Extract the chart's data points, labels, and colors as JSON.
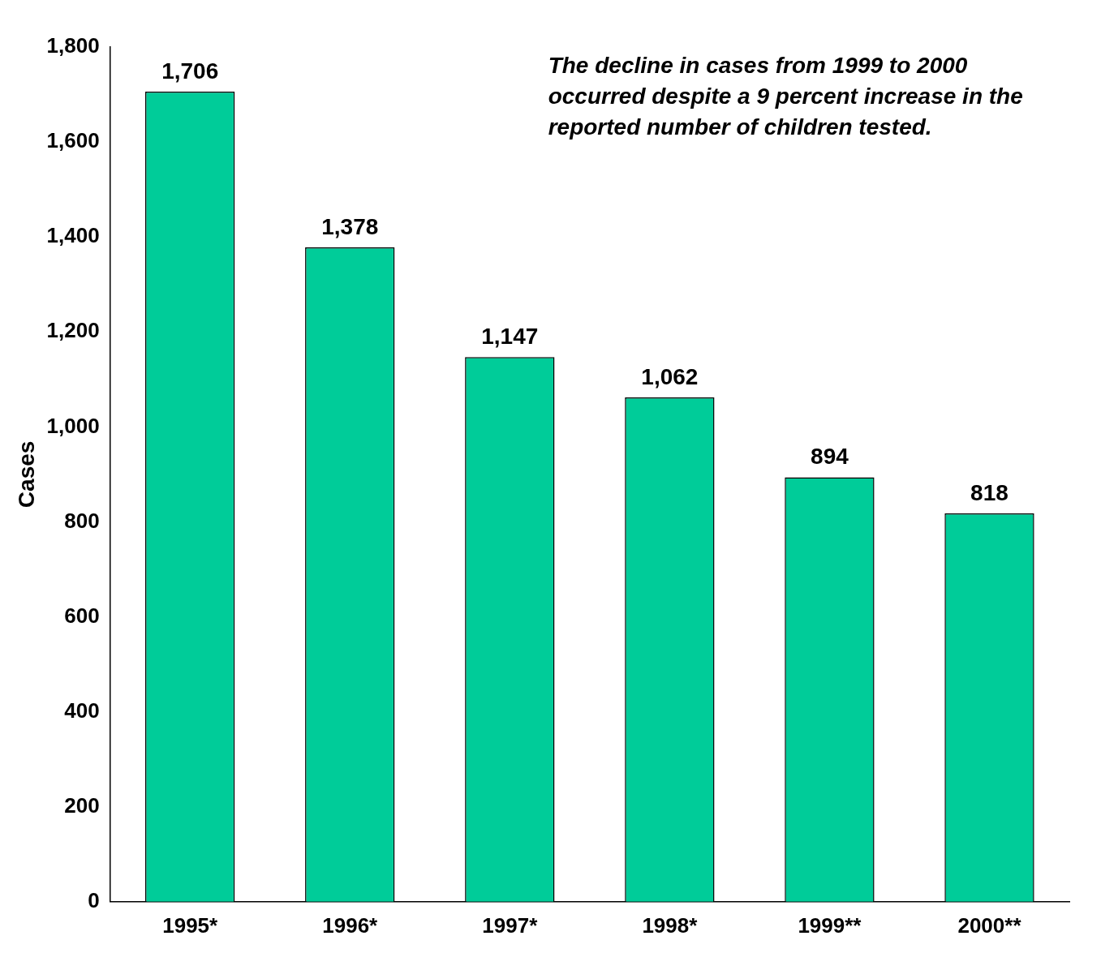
{
  "chart_data": {
    "type": "bar",
    "categories": [
      "1995*",
      "1996*",
      "1997*",
      "1998*",
      "1999**",
      "2000**"
    ],
    "values": [
      1706,
      1378,
      1147,
      1062,
      894,
      818
    ],
    "color": "#00cc99",
    "value_labels": [
      "1,706",
      "1,378",
      "1,147",
      "1,062",
      "894",
      "818"
    ],
    "ylabel": "Cases",
    "ylim": [
      0,
      1800
    ],
    "yticks": [
      0,
      200,
      400,
      600,
      800,
      {
        "value": 1000,
        "label": "1,000"
      },
      {
        "value": 1200,
        "label": "1,200"
      },
      {
        "value": 1400,
        "label": "1,400"
      },
      {
        "value": 1600,
        "label": "1,600"
      },
      {
        "value": 1800,
        "label": "1,800"
      }
    ],
    "grid": false,
    "legend": false,
    "annotations": [
      "The decline in cases from 1999 to 2000 occurred despite a 9 percent increase in the reported number of children tested."
    ]
  }
}
